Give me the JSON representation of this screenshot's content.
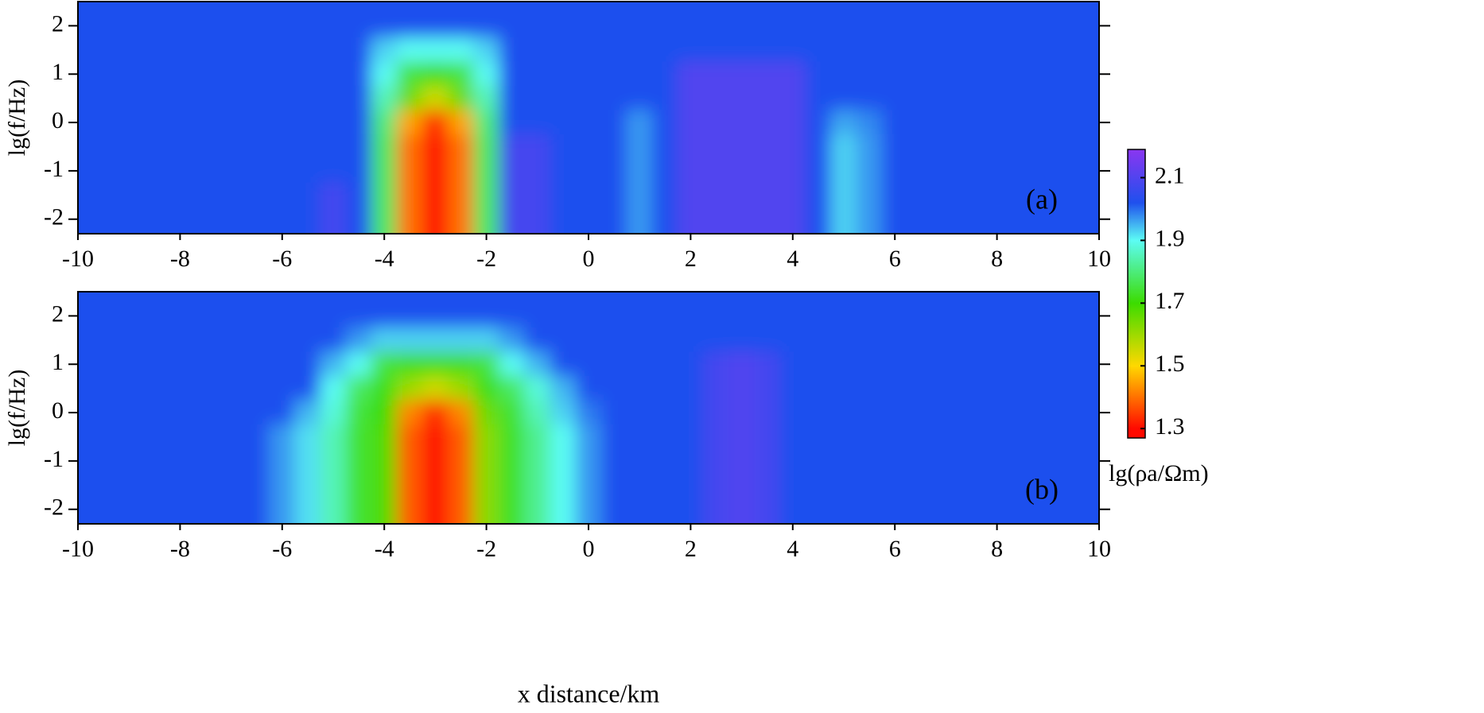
{
  "chart_data": [
    {
      "type": "heatmap",
      "annotation": "(a)",
      "ylabel": "lg(f/Hz)",
      "xlim": [
        -10,
        10
      ],
      "ylim": [
        -2.3,
        2.5
      ],
      "xticks": [
        -10,
        -8,
        -6,
        -4,
        -2,
        0,
        2,
        4,
        6,
        8,
        10
      ],
      "yticks": [
        -2,
        -1,
        0,
        1,
        2
      ],
      "x": [
        -10,
        -9.5,
        -9,
        -8.5,
        -8,
        -7.5,
        -7,
        -6.5,
        -6,
        -5.5,
        -5,
        -4.5,
        -4,
        -3.5,
        -3,
        -2.5,
        -2,
        -1.5,
        -1,
        -0.5,
        0,
        0.5,
        1,
        1.5,
        2,
        2.5,
        3,
        3.5,
        4,
        4.5,
        5,
        5.5,
        6,
        6.5,
        7,
        7.5,
        8,
        8.5,
        9,
        9.5,
        10
      ],
      "y": [
        2,
        1.5,
        1,
        0.5,
        0,
        -0.5,
        -1,
        -1.5,
        -2
      ],
      "z": [
        [
          2.02,
          2.02,
          2.02,
          2.02,
          2.02,
          2.02,
          2.02,
          2.02,
          2.02,
          2.02,
          2.02,
          2.02,
          2.02,
          2.02,
          2.02,
          2.02,
          2.02,
          2.02,
          2.02,
          2.02,
          2.02,
          2.02,
          2.02,
          2.02,
          2.02,
          2.02,
          2.02,
          2.02,
          2.02,
          2.02,
          2.02,
          2.02,
          2.02,
          2.02,
          2.02,
          2.02,
          2.02,
          2.02,
          2.02,
          2.02,
          2.02
        ],
        [
          2.02,
          2.02,
          2.02,
          2.02,
          2.02,
          2.02,
          2.02,
          2.02,
          2.02,
          2.02,
          2.02,
          2.02,
          1.93,
          1.9,
          1.9,
          1.9,
          1.93,
          2.02,
          2.02,
          2.02,
          2.02,
          2.02,
          2.02,
          2.02,
          2.02,
          2.02,
          2.02,
          2.02,
          2.02,
          2.02,
          2.02,
          2.02,
          2.02,
          2.02,
          2.02,
          2.02,
          2.02,
          2.02,
          2.02,
          2.02,
          2.02
        ],
        [
          2.02,
          2.02,
          2.02,
          2.02,
          2.02,
          2.02,
          2.02,
          2.02,
          2.02,
          2.02,
          2.02,
          2.02,
          1.9,
          1.75,
          1.72,
          1.75,
          1.9,
          2.02,
          2.02,
          2.02,
          2.02,
          2.02,
          2.02,
          2.02,
          2.1,
          2.1,
          2.1,
          2.1,
          2.1,
          2.02,
          2.02,
          2.02,
          2.02,
          2.02,
          2.02,
          2.02,
          2.02,
          2.02,
          2.02,
          2.02,
          2.02
        ],
        [
          2.02,
          2.02,
          2.02,
          2.02,
          2.02,
          2.02,
          2.02,
          2.02,
          2.02,
          2.02,
          2.02,
          2.02,
          1.85,
          1.65,
          1.55,
          1.65,
          1.85,
          2.02,
          2.02,
          2.02,
          2.02,
          2.02,
          2.02,
          2.02,
          2.1,
          2.1,
          2.1,
          2.1,
          2.1,
          2.02,
          2.02,
          2.02,
          2.02,
          2.02,
          2.02,
          2.02,
          2.02,
          2.02,
          2.02,
          2.02,
          2.02
        ],
        [
          2.02,
          2.02,
          2.02,
          2.02,
          2.02,
          2.02,
          2.02,
          2.02,
          2.02,
          2.02,
          2.02,
          2.02,
          1.8,
          1.45,
          1.33,
          1.45,
          1.8,
          2.02,
          2.02,
          2.02,
          2.02,
          2.02,
          1.97,
          2.02,
          2.1,
          2.1,
          2.1,
          2.1,
          2.1,
          2.02,
          1.96,
          1.98,
          2.02,
          2.02,
          2.02,
          2.02,
          2.02,
          2.02,
          2.02,
          2.02,
          2.02
        ],
        [
          2.02,
          2.02,
          2.02,
          2.02,
          2.02,
          2.02,
          2.02,
          2.02,
          2.02,
          2.02,
          2.02,
          2.02,
          1.78,
          1.4,
          1.3,
          1.4,
          1.78,
          2.08,
          2.08,
          2.02,
          2.02,
          2.02,
          1.97,
          2.02,
          2.1,
          2.1,
          2.1,
          2.1,
          2.1,
          2.02,
          1.93,
          1.97,
          2.02,
          2.02,
          2.02,
          2.02,
          2.02,
          2.02,
          2.02,
          2.02,
          2.02
        ],
        [
          2.02,
          2.02,
          2.02,
          2.02,
          2.02,
          2.02,
          2.02,
          2.02,
          2.02,
          2.02,
          2.02,
          2.02,
          1.78,
          1.4,
          1.3,
          1.4,
          1.78,
          2.08,
          2.08,
          2.02,
          2.02,
          2.02,
          1.97,
          2.02,
          2.1,
          2.1,
          2.1,
          2.1,
          2.1,
          2.02,
          1.93,
          1.97,
          2.02,
          2.02,
          2.02,
          2.02,
          2.02,
          2.02,
          2.02,
          2.02,
          2.02
        ],
        [
          2.02,
          2.02,
          2.02,
          2.02,
          2.02,
          2.02,
          2.02,
          2.02,
          2.02,
          2.02,
          2.08,
          2.02,
          1.78,
          1.4,
          1.3,
          1.4,
          1.78,
          2.08,
          2.08,
          2.02,
          2.02,
          2.02,
          1.97,
          2.02,
          2.1,
          2.1,
          2.1,
          2.1,
          2.1,
          2.02,
          1.93,
          1.97,
          2.02,
          2.02,
          2.02,
          2.02,
          2.02,
          2.02,
          2.02,
          2.02,
          2.02
        ],
        [
          2.02,
          2.02,
          2.02,
          2.02,
          2.02,
          2.02,
          2.02,
          2.02,
          2.02,
          2.02,
          2.08,
          2.02,
          1.78,
          1.4,
          1.3,
          1.4,
          1.78,
          2.08,
          2.08,
          2.02,
          2.02,
          2.02,
          1.97,
          2.02,
          2.1,
          2.1,
          2.1,
          2.1,
          2.1,
          2.02,
          1.93,
          1.97,
          2.02,
          2.02,
          2.02,
          2.02,
          2.02,
          2.02,
          2.02,
          2.02,
          2.02
        ]
      ]
    },
    {
      "type": "heatmap",
      "annotation": "(b)",
      "ylabel": "lg(f/Hz)",
      "xlabel": "x distance/km",
      "xlim": [
        -10,
        10
      ],
      "ylim": [
        -2.3,
        2.5
      ],
      "xticks": [
        -10,
        -8,
        -6,
        -4,
        -2,
        0,
        2,
        4,
        6,
        8,
        10
      ],
      "yticks": [
        -2,
        -1,
        0,
        1,
        2
      ],
      "x": [
        -10,
        -9.5,
        -9,
        -8.5,
        -8,
        -7.5,
        -7,
        -6.5,
        -6,
        -5.5,
        -5,
        -4.5,
        -4,
        -3.5,
        -3,
        -2.5,
        -2,
        -1.5,
        -1,
        -0.5,
        0,
        0.5,
        1,
        1.5,
        2,
        2.5,
        3,
        3.5,
        4,
        4.5,
        5,
        5.5,
        6,
        6.5,
        7,
        7.5,
        8,
        8.5,
        9,
        9.5,
        10
      ],
      "y": [
        2,
        1.5,
        1,
        0.5,
        0,
        -0.5,
        -1,
        -1.5,
        -2
      ],
      "z": [
        [
          2.02,
          2.02,
          2.02,
          2.02,
          2.02,
          2.02,
          2.02,
          2.02,
          2.02,
          2.02,
          2.02,
          2.02,
          2.02,
          2.02,
          2.02,
          2.02,
          2.02,
          2.02,
          2.02,
          2.02,
          2.02,
          2.02,
          2.02,
          2.02,
          2.02,
          2.02,
          2.02,
          2.02,
          2.02,
          2.02,
          2.02,
          2.02,
          2.02,
          2.02,
          2.02,
          2.02,
          2.02,
          2.02,
          2.02,
          2.02,
          2.02
        ],
        [
          2.02,
          2.02,
          2.02,
          2.02,
          2.02,
          2.02,
          2.02,
          2.02,
          2.02,
          2.02,
          2.02,
          1.97,
          1.93,
          1.93,
          1.93,
          1.93,
          1.93,
          1.97,
          2.02,
          2.02,
          2.02,
          2.02,
          2.02,
          2.02,
          2.02,
          2.02,
          2.02,
          2.02,
          2.02,
          2.02,
          2.02,
          2.02,
          2.02,
          2.02,
          2.02,
          2.02,
          2.02,
          2.02,
          2.02,
          2.02,
          2.02
        ],
        [
          2.02,
          2.02,
          2.02,
          2.02,
          2.02,
          2.02,
          2.02,
          2.02,
          2.02,
          2.02,
          1.95,
          1.9,
          1.75,
          1.72,
          1.72,
          1.72,
          1.75,
          1.9,
          1.95,
          2.02,
          2.02,
          2.02,
          2.02,
          2.02,
          2.02,
          2.08,
          2.1,
          2.08,
          2.02,
          2.02,
          2.02,
          2.02,
          2.02,
          2.02,
          2.02,
          2.02,
          2.02,
          2.02,
          2.02,
          2.02,
          2.02
        ],
        [
          2.02,
          2.02,
          2.02,
          2.02,
          2.02,
          2.02,
          2.02,
          2.02,
          2.02,
          2.02,
          1.9,
          1.78,
          1.72,
          1.6,
          1.55,
          1.6,
          1.72,
          1.78,
          1.88,
          1.95,
          2.02,
          2.02,
          2.02,
          2.02,
          2.02,
          2.08,
          2.1,
          2.08,
          2.02,
          2.02,
          2.02,
          2.02,
          2.02,
          2.02,
          2.02,
          2.02,
          2.02,
          2.02,
          2.02,
          2.02,
          2.02
        ],
        [
          2.02,
          2.02,
          2.02,
          2.02,
          2.02,
          2.02,
          2.02,
          2.02,
          2.02,
          1.95,
          1.88,
          1.75,
          1.7,
          1.42,
          1.33,
          1.42,
          1.65,
          1.74,
          1.85,
          1.93,
          1.99,
          2.02,
          2.02,
          2.02,
          2.02,
          2.08,
          2.1,
          2.08,
          2.02,
          2.02,
          2.02,
          2.02,
          2.02,
          2.02,
          2.02,
          2.02,
          2.02,
          2.02,
          2.02,
          2.02,
          2.02
        ],
        [
          2.02,
          2.02,
          2.02,
          2.02,
          2.02,
          2.02,
          2.02,
          2.02,
          1.97,
          1.92,
          1.85,
          1.74,
          1.68,
          1.38,
          1.3,
          1.38,
          1.62,
          1.73,
          1.82,
          1.9,
          1.97,
          2.02,
          2.02,
          2.02,
          2.02,
          2.08,
          2.1,
          2.08,
          2.02,
          2.02,
          2.02,
          2.02,
          2.02,
          2.02,
          2.02,
          2.02,
          2.02,
          2.02,
          2.02,
          2.02,
          2.02
        ],
        [
          2.02,
          2.02,
          2.02,
          2.02,
          2.02,
          2.02,
          2.02,
          2.02,
          1.97,
          1.92,
          1.85,
          1.74,
          1.68,
          1.38,
          1.3,
          1.38,
          1.62,
          1.73,
          1.82,
          1.9,
          1.97,
          2.02,
          2.02,
          2.02,
          2.02,
          2.08,
          2.1,
          2.08,
          2.02,
          2.02,
          2.02,
          2.02,
          2.02,
          2.02,
          2.02,
          2.02,
          2.02,
          2.02,
          2.02,
          2.02,
          2.02
        ],
        [
          2.02,
          2.02,
          2.02,
          2.02,
          2.02,
          2.02,
          2.02,
          2.02,
          1.97,
          1.92,
          1.85,
          1.74,
          1.68,
          1.38,
          1.3,
          1.38,
          1.62,
          1.73,
          1.82,
          1.9,
          1.97,
          2.02,
          2.02,
          2.02,
          2.02,
          2.08,
          2.1,
          2.08,
          2.02,
          2.02,
          2.02,
          2.02,
          2.02,
          2.02,
          2.02,
          2.02,
          2.02,
          2.02,
          2.02,
          2.02,
          2.02
        ],
        [
          2.02,
          2.02,
          2.02,
          2.02,
          2.02,
          2.02,
          2.02,
          2.02,
          1.97,
          1.92,
          1.85,
          1.74,
          1.68,
          1.38,
          1.3,
          1.38,
          1.62,
          1.73,
          1.82,
          1.9,
          1.97,
          2.02,
          2.02,
          2.02,
          2.02,
          2.08,
          2.1,
          2.08,
          2.02,
          2.02,
          2.02,
          2.02,
          2.02,
          2.02,
          2.02,
          2.02,
          2.02,
          2.02,
          2.02,
          2.02,
          2.02
        ]
      ]
    }
  ],
  "colorbar": {
    "label": "lg(ρa/Ωm)",
    "zlim": [
      1.27,
      2.19
    ],
    "ticks": [
      1.3,
      1.5,
      1.7,
      1.9,
      2.1
    ],
    "colorscale": [
      [
        1.3,
        "#ff0a00"
      ],
      [
        1.5,
        "#ffd800"
      ],
      [
        1.7,
        "#3cdc00"
      ],
      [
        1.9,
        "#5cfcf4"
      ],
      [
        2.02,
        "#1f50ee"
      ],
      [
        2.19,
        "#8a36f0"
      ]
    ]
  }
}
